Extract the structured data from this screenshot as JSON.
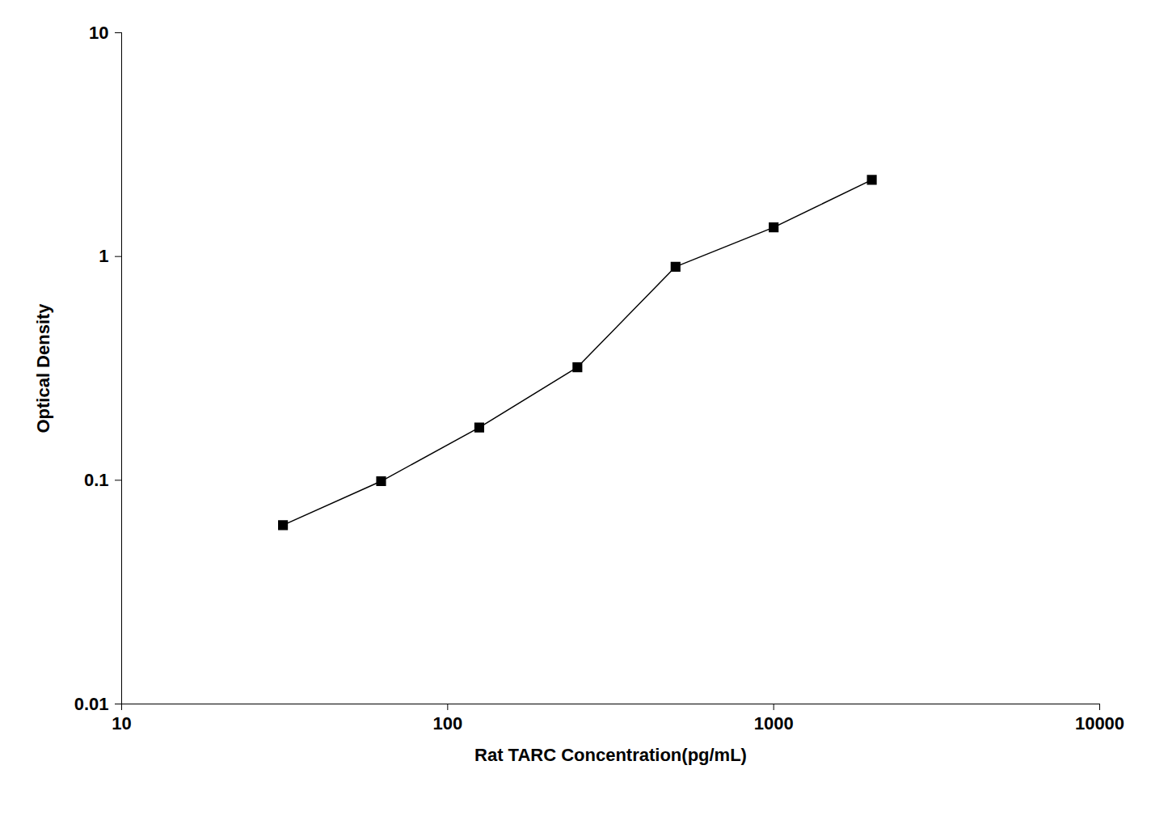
{
  "chart_data": {
    "type": "line",
    "x": [
      31.25,
      62.5,
      125,
      250,
      500,
      1000,
      2000
    ],
    "values": [
      0.063,
      0.099,
      0.172,
      0.32,
      0.9,
      1.35,
      2.2
    ],
    "xlabel": "Rat TARC Concentration(pg/mL)",
    "ylabel": "Optical Density",
    "xlim": [
      10,
      10000
    ],
    "ylim": [
      0.01,
      10
    ],
    "xticks": [
      10,
      100,
      1000,
      10000
    ],
    "yticks": [
      0.01,
      0.1,
      1,
      10
    ],
    "log": true,
    "grid": false,
    "color": "#000000",
    "marker": "square"
  }
}
